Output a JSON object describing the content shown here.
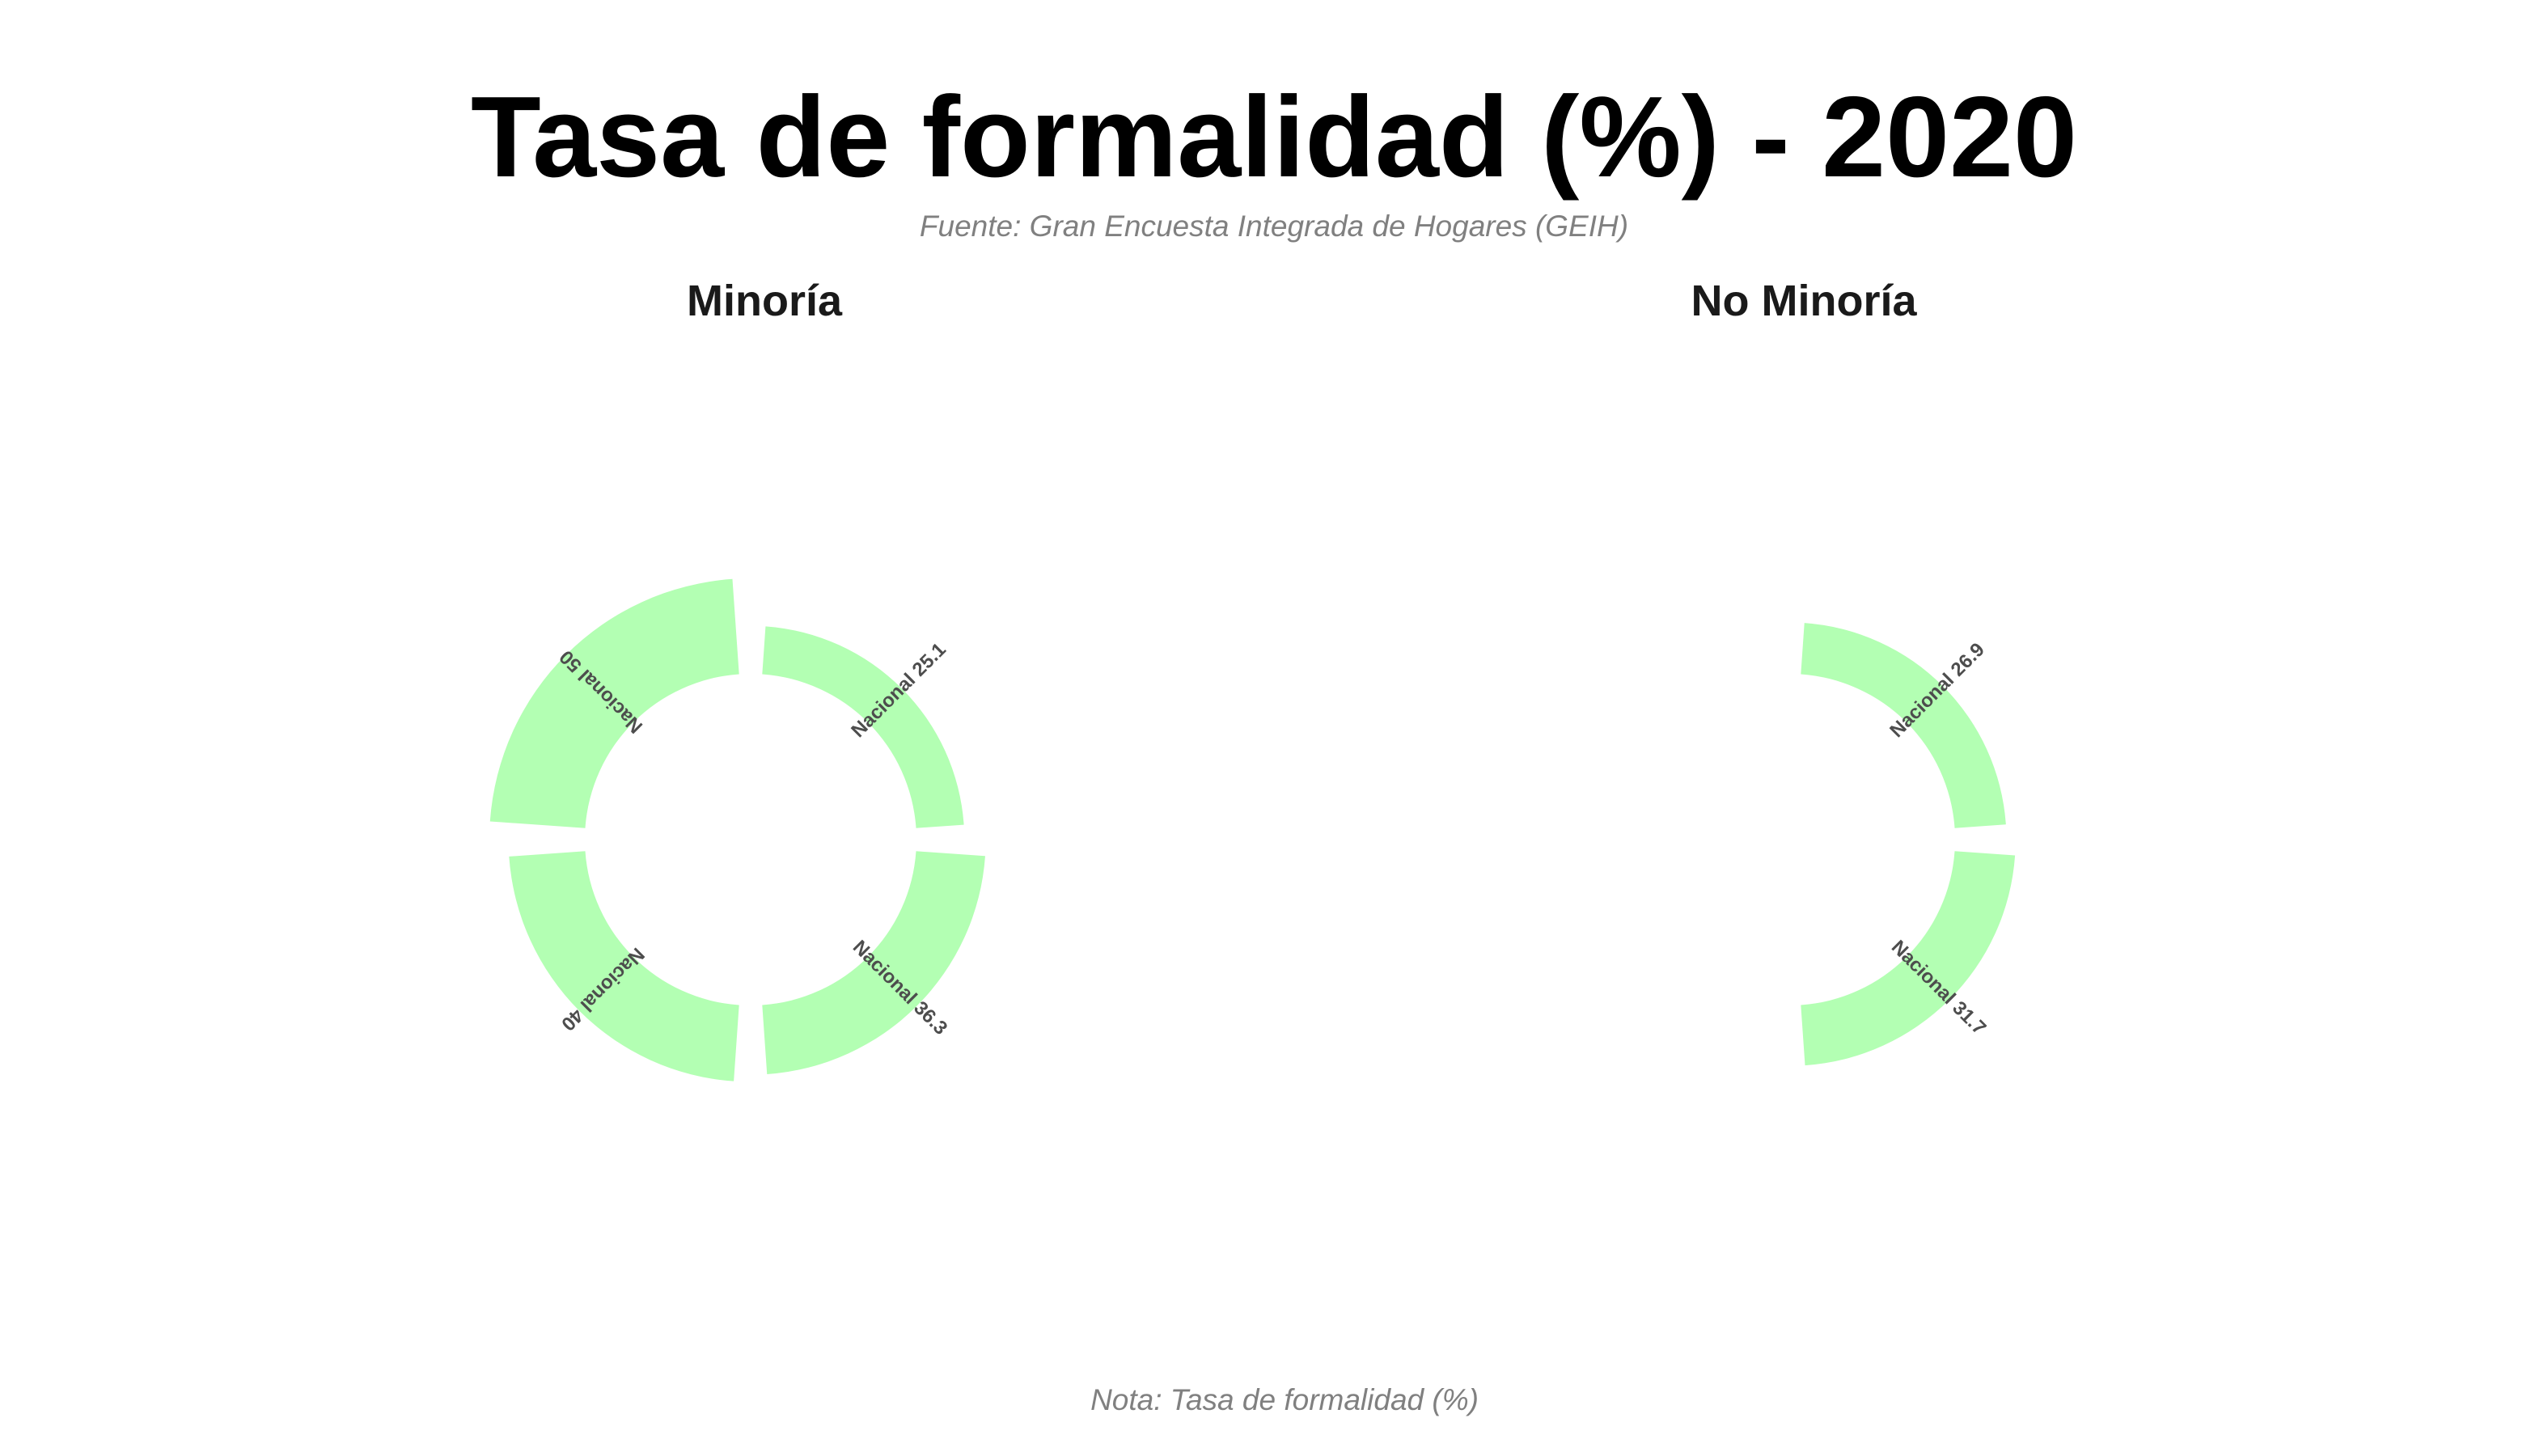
{
  "chart_data": {
    "type": "radial-bar",
    "title": "Tasa de formalidad (%) - 2020",
    "subtitle": "Fuente: Gran Encuesta Integrada de Hogares (GEIH)",
    "caption": "Nota: Tasa de formalidad (%)",
    "bar_color": "#b3ffb3",
    "label_color": "#4d4d4d",
    "value_range": [
      0,
      50
    ],
    "panels": [
      {
        "name": "Minoría",
        "segments": [
          {
            "label": "Nacional 25.1",
            "value": 25.1
          },
          {
            "label": "Nacional 36.3",
            "value": 36.3
          },
          {
            "label": "Nacional 40",
            "value": 40
          },
          {
            "label": "Nacional 50",
            "value": 50
          }
        ]
      },
      {
        "name": "No Minoría",
        "segments": [
          {
            "label": "Nacional 26.9",
            "value": 26.9
          },
          {
            "label": "Nacional 31.7",
            "value": 31.7
          }
        ]
      }
    ]
  }
}
